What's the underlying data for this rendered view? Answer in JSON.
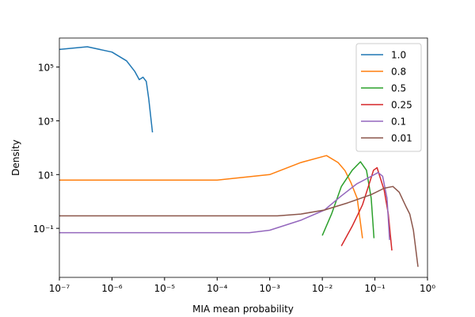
{
  "chart_data": {
    "type": "line",
    "xlabel": "MIA mean probability",
    "ylabel": "Density",
    "xscale": "log",
    "yscale": "log",
    "xlim": [
      1e-07,
      1
    ],
    "ylim": [
      0.0015,
      1200000
    ],
    "xticks": [
      {
        "value": 1e-07,
        "label": "10⁻⁷"
      },
      {
        "value": 1e-06,
        "label": "10⁻⁶"
      },
      {
        "value": 1e-05,
        "label": "10⁻⁵"
      },
      {
        "value": 0.0001,
        "label": "10⁻⁴"
      },
      {
        "value": 0.001,
        "label": "10⁻³"
      },
      {
        "value": 0.01,
        "label": "10⁻²"
      },
      {
        "value": 0.1,
        "label": "10⁻¹"
      },
      {
        "value": 1,
        "label": "10⁰"
      }
    ],
    "yticks": [
      {
        "value": 0.1,
        "label": "10⁻¹"
      },
      {
        "value": 10,
        "label": "10¹"
      },
      {
        "value": 1000,
        "label": "10³"
      },
      {
        "value": 100000,
        "label": "10⁵"
      }
    ],
    "grid": false,
    "legend": "upper right",
    "series": [
      {
        "name": "1.0",
        "color": "#1f77b4",
        "x": [
          1e-07,
          3.4e-07,
          1e-06,
          1.9e-06,
          2.7e-06,
          3.3e-06,
          3.9e-06,
          4.5e-06,
          5e-06,
          5.9e-06
        ],
        "values": [
          450000,
          570000,
          360000,
          170000,
          70000,
          34000,
          42000,
          29000,
          6500,
          370
        ]
      },
      {
        "name": "0.8",
        "color": "#ff7f0e",
        "x": [
          1e-07,
          1e-06,
          1e-05,
          0.0001,
          0.001,
          0.0039,
          0.012,
          0.02,
          0.027,
          0.035,
          0.046,
          0.058
        ],
        "values": [
          6.2,
          6.2,
          6.2,
          6.2,
          10,
          28,
          51,
          28,
          14,
          5,
          1.3,
          0.043
        ]
      },
      {
        "name": "0.5",
        "color": "#2ca02c",
        "x": [
          0.01,
          0.015,
          0.023,
          0.037,
          0.053,
          0.069,
          0.085,
          0.096
        ],
        "values": [
          0.054,
          0.34,
          3.6,
          14.5,
          30,
          14.5,
          1.3,
          0.043
        ]
      },
      {
        "name": "0.25",
        "color": "#d62728",
        "x": [
          0.023,
          0.037,
          0.058,
          0.077,
          0.094,
          0.11,
          0.15,
          0.18,
          0.21
        ],
        "values": [
          0.022,
          0.12,
          0.75,
          4.2,
          14.5,
          18,
          2.6,
          0.34,
          0.015
        ]
      },
      {
        "name": "0.1",
        "color": "#9467bd",
        "x": [
          1e-07,
          1e-05,
          0.00041,
          0.001,
          0.0039,
          0.011,
          0.022,
          0.045,
          0.077,
          0.115,
          0.14,
          0.17,
          0.19
        ],
        "values": [
          0.069,
          0.069,
          0.069,
          0.085,
          0.2,
          0.48,
          1.5,
          4.5,
          7.8,
          11.9,
          8.7,
          1.3,
          0.037
        ]
      },
      {
        "name": "0.01",
        "color": "#8c564b",
        "x": [
          1e-07,
          1e-05,
          0.0014,
          0.0039,
          0.011,
          0.03,
          0.085,
          0.15,
          0.22,
          0.29,
          0.39,
          0.46,
          0.54,
          0.66
        ],
        "values": [
          0.29,
          0.29,
          0.29,
          0.34,
          0.48,
          0.88,
          1.8,
          3.1,
          3.6,
          2.2,
          0.65,
          0.34,
          0.085,
          0.0037
        ]
      }
    ]
  }
}
